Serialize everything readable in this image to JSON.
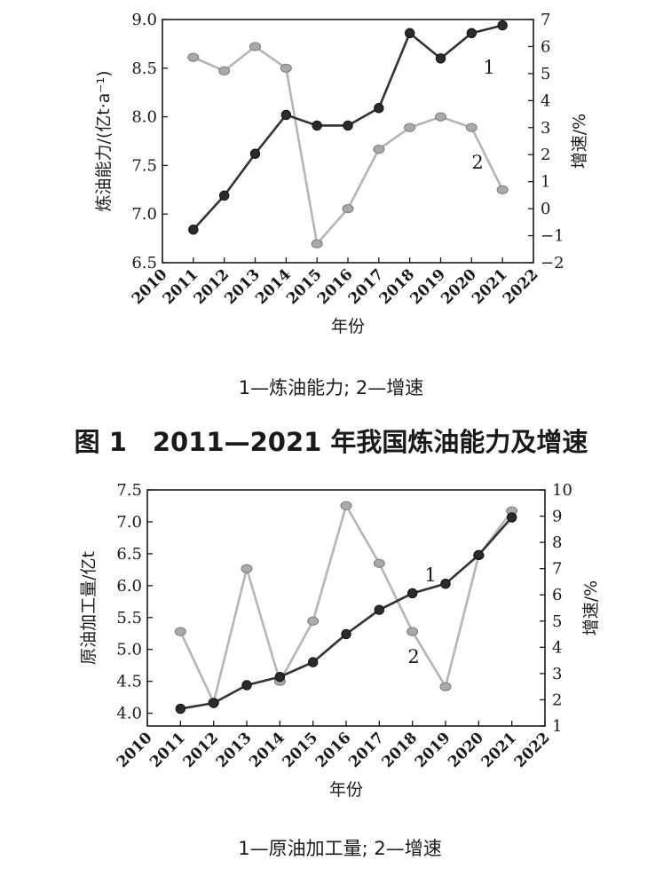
{
  "figure1": {
    "title": "图 1　2011—2021 年我国炼油能力及增速",
    "caption": "1—炼油能力; 2—增速",
    "chart_data": {
      "type": "line",
      "xlabel": "年份",
      "ylabel_left": "炼油能力/(亿t·a⁻¹)",
      "ylabel_right": "增速/%",
      "x_ticks": [
        "2010",
        "2011",
        "2012",
        "2013",
        "2014",
        "2015",
        "2016",
        "2017",
        "2018",
        "2019",
        "2020",
        "2021",
        "2022"
      ],
      "x_range": [
        2010,
        2022
      ],
      "y_left_range": [
        6.5,
        9.0
      ],
      "y_left_ticks": [
        "6.5",
        "7.0",
        "7.5",
        "8.0",
        "8.5",
        "9.0"
      ],
      "y_right_range": [
        -2,
        7
      ],
      "y_right_ticks": [
        "-2",
        "-1",
        "0",
        "1",
        "2",
        "3",
        "4",
        "5",
        "6",
        "7"
      ],
      "series": [
        {
          "name": "1",
          "axis": "left",
          "color": "#333333",
          "x": [
            2011,
            2012,
            2013,
            2014,
            2015,
            2016,
            2017,
            2018,
            2019,
            2020,
            2021
          ],
          "values": [
            6.84,
            7.19,
            7.62,
            8.02,
            7.91,
            7.91,
            8.09,
            8.86,
            8.6,
            8.86,
            8.94
          ]
        },
        {
          "name": "2",
          "axis": "right",
          "color": "#b5b5b5",
          "x": [
            2011,
            2012,
            2013,
            2014,
            2015,
            2016,
            2017,
            2018,
            2019,
            2020,
            2021
          ],
          "values": [
            5.6,
            5.1,
            6.0,
            5.2,
            -1.3,
            0.0,
            2.2,
            3.0,
            3.4,
            3.0,
            0.7
          ]
        }
      ],
      "grid": false
    }
  },
  "figure2": {
    "caption": "1—原油加工量; 2—增速",
    "chart_data": {
      "type": "line",
      "xlabel": "年份",
      "ylabel_left": "原油加工量/亿t",
      "ylabel_right": "增速/%",
      "x_ticks": [
        "2010",
        "2011",
        "2012",
        "2013",
        "2014",
        "2015",
        "2016",
        "2017",
        "2018",
        "2019",
        "2020",
        "2021",
        "2022"
      ],
      "x_range": [
        2010,
        2022
      ],
      "y_left_range": [
        3.8,
        7.5
      ],
      "y_left_ticks": [
        "4.0",
        "4.5",
        "5.0",
        "5.5",
        "6.0",
        "6.5",
        "7.0",
        "7.5"
      ],
      "y_right_range": [
        1,
        10
      ],
      "y_right_ticks": [
        "1",
        "2",
        "3",
        "4",
        "5",
        "6",
        "7",
        "8",
        "9",
        "10"
      ],
      "series": [
        {
          "name": "1",
          "axis": "left",
          "color": "#333333",
          "x": [
            2011,
            2012,
            2013,
            2014,
            2015,
            2016,
            2017,
            2018,
            2019,
            2020,
            2021
          ],
          "values": [
            4.07,
            4.16,
            4.44,
            4.57,
            4.8,
            5.24,
            5.62,
            5.88,
            6.03,
            6.48,
            7.07
          ]
        },
        {
          "name": "2",
          "axis": "right",
          "color": "#b5b5b5",
          "x": [
            2011,
            2012,
            2013,
            2014,
            2015,
            2016,
            2017,
            2018,
            2019,
            2020,
            2021
          ],
          "values": [
            4.6,
            1.9,
            7.0,
            2.7,
            5.0,
            9.4,
            7.2,
            4.6,
            2.5,
            7.5,
            9.2
          ]
        }
      ],
      "grid": false
    }
  }
}
